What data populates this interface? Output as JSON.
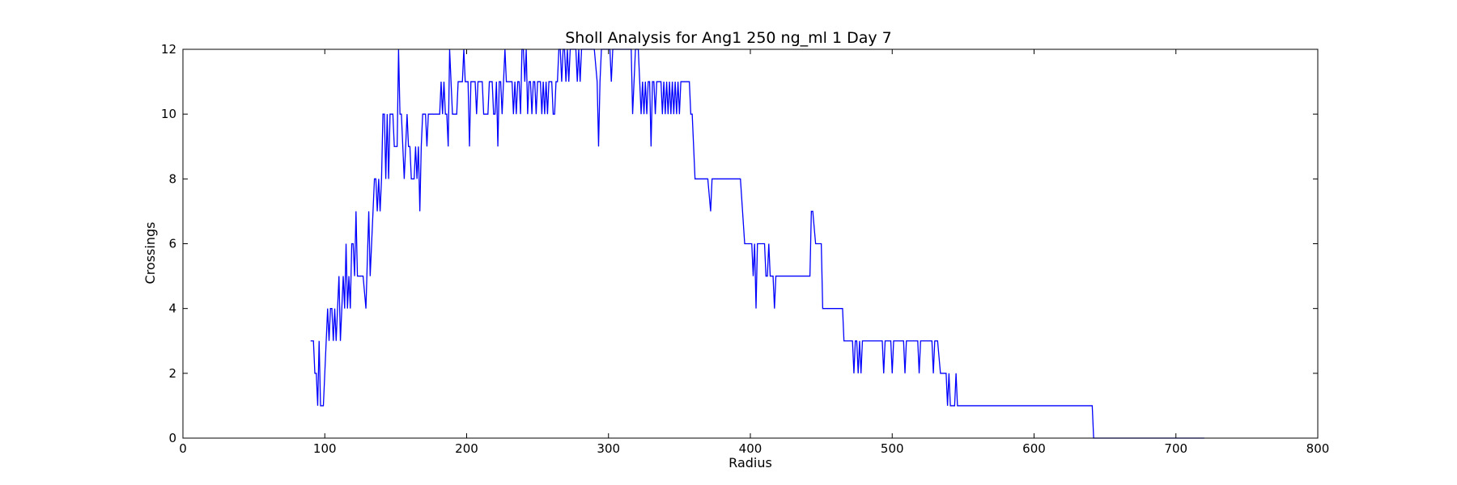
{
  "chart_data": {
    "type": "line",
    "title": "Sholl Analysis for Ang1 250 ng_ml 1 Day 7",
    "xlabel": "Radius",
    "ylabel": "Crossings",
    "xlim": [
      0,
      800
    ],
    "ylim": [
      0,
      12
    ],
    "xticks": [
      "0",
      "100",
      "200",
      "300",
      "400",
      "500",
      "600",
      "700",
      "800"
    ],
    "yticks": [
      "0",
      "2",
      "4",
      "6",
      "8",
      "10",
      "12"
    ],
    "grid": false,
    "colors": {
      "line": "#0000ff",
      "axes": "#000000"
    },
    "series": [
      {
        "values": [
          [
            90,
            3
          ],
          [
            92,
            3
          ],
          [
            93,
            2
          ],
          [
            94,
            2
          ],
          [
            95,
            1
          ],
          [
            96,
            3
          ],
          [
            97,
            1
          ],
          [
            99,
            1
          ],
          [
            101,
            3
          ],
          [
            102,
            4
          ],
          [
            103,
            3
          ],
          [
            104,
            4
          ],
          [
            105,
            4
          ],
          [
            106,
            3
          ],
          [
            107,
            4
          ],
          [
            108,
            3
          ],
          [
            110,
            5
          ],
          [
            111,
            3
          ],
          [
            113,
            5
          ],
          [
            114,
            4
          ],
          [
            115,
            6
          ],
          [
            116,
            4
          ],
          [
            117,
            5
          ],
          [
            118,
            4
          ],
          [
            119,
            6
          ],
          [
            120,
            6
          ],
          [
            121,
            5
          ],
          [
            122,
            7
          ],
          [
            123,
            5
          ],
          [
            127,
            5
          ],
          [
            129,
            4
          ],
          [
            131,
            7
          ],
          [
            132,
            5
          ],
          [
            134,
            7
          ],
          [
            135,
            8
          ],
          [
            136,
            8
          ],
          [
            137,
            7
          ],
          [
            138,
            8
          ],
          [
            139,
            7
          ],
          [
            140,
            8
          ],
          [
            141,
            10
          ],
          [
            142,
            10
          ],
          [
            143,
            8
          ],
          [
            144,
            10
          ],
          [
            145,
            8
          ],
          [
            146,
            10
          ],
          [
            148,
            10
          ],
          [
            149,
            9
          ],
          [
            151,
            9
          ],
          [
            152,
            12
          ],
          [
            153,
            10
          ],
          [
            154,
            10
          ],
          [
            156,
            8
          ],
          [
            158,
            10
          ],
          [
            159,
            9
          ],
          [
            160,
            9
          ],
          [
            161,
            8
          ],
          [
            163,
            8
          ],
          [
            164,
            9
          ],
          [
            165,
            8
          ],
          [
            166,
            9
          ],
          [
            167,
            7
          ],
          [
            168,
            9
          ],
          [
            169,
            10
          ],
          [
            171,
            10
          ],
          [
            172,
            9
          ],
          [
            173,
            10
          ],
          [
            181,
            10
          ],
          [
            182,
            11
          ],
          [
            183,
            10
          ],
          [
            184,
            11
          ],
          [
            185,
            10
          ],
          [
            186,
            10
          ],
          [
            187,
            9
          ],
          [
            188,
            12
          ],
          [
            190,
            10
          ],
          [
            193,
            10
          ],
          [
            194,
            11
          ],
          [
            197,
            11
          ],
          [
            198,
            12
          ],
          [
            199,
            11
          ],
          [
            201,
            11
          ],
          [
            202,
            9
          ],
          [
            203,
            11
          ],
          [
            206,
            11
          ],
          [
            207,
            10
          ],
          [
            208,
            11
          ],
          [
            211,
            11
          ],
          [
            212,
            10
          ],
          [
            215,
            10
          ],
          [
            216,
            11
          ],
          [
            218,
            11
          ],
          [
            219,
            10
          ],
          [
            220,
            10
          ],
          [
            221,
            11
          ],
          [
            222,
            9
          ],
          [
            223,
            11
          ],
          [
            224,
            11
          ],
          [
            225,
            10
          ],
          [
            226,
            11
          ],
          [
            227,
            12
          ],
          [
            228,
            11
          ],
          [
            232,
            11
          ],
          [
            233,
            10
          ],
          [
            234,
            11
          ],
          [
            235,
            10
          ],
          [
            236,
            11
          ],
          [
            237,
            11
          ],
          [
            238,
            10
          ],
          [
            239,
            12
          ],
          [
            240,
            12
          ],
          [
            241,
            11
          ],
          [
            242,
            12
          ],
          [
            243,
            10
          ],
          [
            244,
            11
          ],
          [
            245,
            11
          ],
          [
            246,
            10
          ],
          [
            247,
            11
          ],
          [
            248,
            11
          ],
          [
            249,
            10
          ],
          [
            250,
            11
          ],
          [
            252,
            11
          ],
          [
            253,
            10
          ],
          [
            254,
            11
          ],
          [
            255,
            10
          ],
          [
            256,
            11
          ],
          [
            257,
            10
          ],
          [
            258,
            11
          ],
          [
            260,
            11
          ],
          [
            261,
            10
          ],
          [
            262,
            10
          ],
          [
            263,
            11
          ],
          [
            264,
            11
          ],
          [
            265,
            12
          ],
          [
            266,
            12
          ],
          [
            267,
            11
          ],
          [
            268,
            12
          ],
          [
            269,
            12
          ],
          [
            270,
            11
          ],
          [
            271,
            12
          ],
          [
            272,
            11
          ],
          [
            273,
            12
          ],
          [
            277,
            12
          ],
          [
            278,
            11
          ],
          [
            279,
            12
          ],
          [
            280,
            11
          ],
          [
            281,
            12
          ],
          [
            290,
            12
          ],
          [
            292,
            11
          ],
          [
            293,
            9
          ],
          [
            294,
            11
          ],
          [
            295,
            12
          ],
          [
            301,
            12
          ],
          [
            302,
            11
          ],
          [
            303,
            12
          ],
          [
            316,
            12
          ],
          [
            317,
            10
          ],
          [
            318,
            11
          ],
          [
            319,
            12
          ],
          [
            321,
            12
          ],
          [
            322,
            11
          ],
          [
            323,
            10
          ],
          [
            324,
            11
          ],
          [
            325,
            10
          ],
          [
            326,
            11
          ],
          [
            327,
            10
          ],
          [
            328,
            11
          ],
          [
            329,
            11
          ],
          [
            330,
            9
          ],
          [
            331,
            11
          ],
          [
            332,
            11
          ],
          [
            333,
            10
          ],
          [
            334,
            11
          ],
          [
            337,
            11
          ],
          [
            338,
            10
          ],
          [
            339,
            11
          ],
          [
            340,
            10
          ],
          [
            341,
            11
          ],
          [
            342,
            10
          ],
          [
            343,
            11
          ],
          [
            344,
            10
          ],
          [
            345,
            11
          ],
          [
            346,
            10
          ],
          [
            347,
            11
          ],
          [
            348,
            10
          ],
          [
            349,
            11
          ],
          [
            350,
            10
          ],
          [
            351,
            11
          ],
          [
            357,
            11
          ],
          [
            358,
            10
          ],
          [
            359,
            10
          ],
          [
            361,
            8
          ],
          [
            370,
            8
          ],
          [
            372,
            7
          ],
          [
            373,
            8
          ],
          [
            393,
            8
          ],
          [
            396,
            6
          ],
          [
            401,
            6
          ],
          [
            402,
            5
          ],
          [
            403,
            6
          ],
          [
            404,
            4
          ],
          [
            405,
            6
          ],
          [
            410,
            6
          ],
          [
            411,
            5
          ],
          [
            412,
            5
          ],
          [
            413,
            6
          ],
          [
            414,
            5
          ],
          [
            416,
            5
          ],
          [
            417,
            4
          ],
          [
            418,
            5
          ],
          [
            442,
            5
          ],
          [
            443,
            7
          ],
          [
            444,
            7
          ],
          [
            446,
            6
          ],
          [
            450,
            6
          ],
          [
            451,
            4
          ],
          [
            465,
            4
          ],
          [
            466,
            3
          ],
          [
            472,
            3
          ],
          [
            473,
            2
          ],
          [
            474,
            3
          ],
          [
            475,
            3
          ],
          [
            476,
            2
          ],
          [
            477,
            3
          ],
          [
            478,
            2
          ],
          [
            479,
            3
          ],
          [
            493,
            3
          ],
          [
            494,
            2
          ],
          [
            495,
            3
          ],
          [
            499,
            3
          ],
          [
            500,
            2
          ],
          [
            501,
            3
          ],
          [
            508,
            3
          ],
          [
            509,
            2
          ],
          [
            510,
            3
          ],
          [
            518,
            3
          ],
          [
            519,
            2
          ],
          [
            520,
            3
          ],
          [
            528,
            3
          ],
          [
            529,
            2
          ],
          [
            530,
            3
          ],
          [
            532,
            3
          ],
          [
            534,
            2
          ],
          [
            538,
            2
          ],
          [
            539,
            1
          ],
          [
            540,
            2
          ],
          [
            541,
            1
          ],
          [
            544,
            1
          ],
          [
            545,
            2
          ],
          [
            546,
            1
          ],
          [
            641,
            1
          ],
          [
            642,
            0
          ],
          [
            720,
            0
          ]
        ]
      }
    ]
  }
}
